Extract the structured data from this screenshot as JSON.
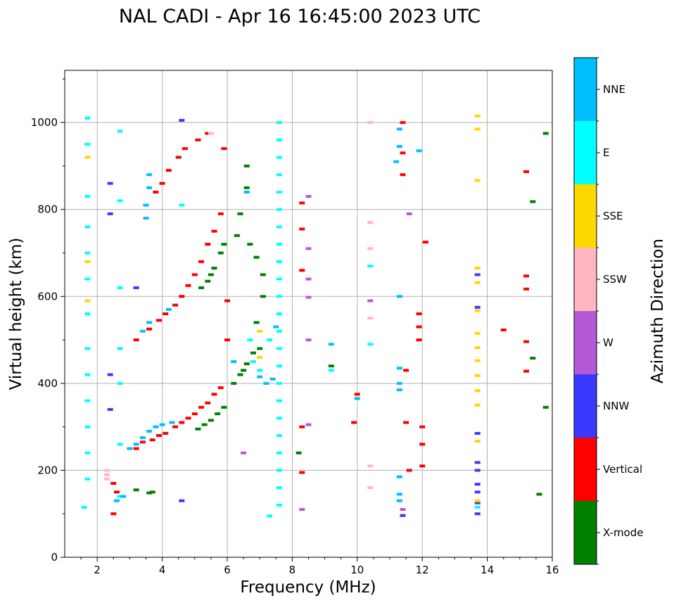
{
  "chart_data": {
    "type": "scatter",
    "title": "NAL CADI - Apr 16 16:45:00 2023 UTC",
    "xlabel": "Frequency (MHz)",
    "ylabel": "Virtual height (km)",
    "xlim": [
      1,
      16
    ],
    "ylim": [
      0,
      1120
    ],
    "grid": true,
    "x_ticks": [
      2,
      4,
      6,
      8,
      10,
      12,
      14,
      16
    ],
    "y_ticks": [
      0,
      200,
      400,
      600,
      800,
      1000
    ],
    "x_minor_ticks": [
      1.5,
      2.5,
      3,
      3.5,
      4.5,
      5,
      5.5,
      6.5,
      7,
      7.5,
      8.5,
      9,
      9.5,
      10.5,
      11,
      11.5,
      12.5,
      13,
      13.5,
      14.5,
      15,
      15.5
    ],
    "y_minor_ticks": [
      100,
      300,
      500,
      700,
      900,
      1100
    ],
    "colorbar": {
      "label": "Azimuth Direction",
      "categories": [
        {
          "name": "X-mode",
          "color": "#008000"
        },
        {
          "name": "Vertical",
          "color": "#ff0000"
        },
        {
          "name": "NNW",
          "color": "#3a3aff"
        },
        {
          "name": "W",
          "color": "#b45ad7"
        },
        {
          "name": "SSW",
          "color": "#ffb6c1"
        },
        {
          "name": "SSE",
          "color": "#ffd700"
        },
        {
          "name": "E",
          "color": "#00ffff"
        },
        {
          "name": "NNE",
          "color": "#00bfff"
        }
      ]
    },
    "series": [
      {
        "name": "X-mode",
        "points": [
          [
            3.2,
            155
          ],
          [
            3.6,
            148
          ],
          [
            3.7,
            150
          ],
          [
            5.1,
            295
          ],
          [
            5.3,
            305
          ],
          [
            5.5,
            315
          ],
          [
            5.7,
            330
          ],
          [
            5.9,
            345
          ],
          [
            5.2,
            620
          ],
          [
            5.4,
            635
          ],
          [
            5.5,
            650
          ],
          [
            5.6,
            665
          ],
          [
            5.8,
            700
          ],
          [
            5.9,
            720
          ],
          [
            6.2,
            400
          ],
          [
            6.4,
            420
          ],
          [
            6.5,
            430
          ],
          [
            6.6,
            445
          ],
          [
            6.8,
            470
          ],
          [
            7.0,
            480
          ],
          [
            6.6,
            900
          ],
          [
            6.6,
            850
          ],
          [
            6.4,
            790
          ],
          [
            6.3,
            740
          ],
          [
            6.7,
            720
          ],
          [
            6.9,
            690
          ],
          [
            7.1,
            650
          ],
          [
            7.1,
            600
          ],
          [
            6.9,
            540
          ],
          [
            8.2,
            240
          ],
          [
            9.2,
            440
          ],
          [
            15.6,
            145
          ],
          [
            15.8,
            345
          ],
          [
            15.4,
            458
          ],
          [
            15.4,
            818
          ],
          [
            15.8,
            975
          ]
        ]
      },
      {
        "name": "Vertical",
        "points": [
          [
            2.5,
            170
          ],
          [
            2.6,
            150
          ],
          [
            2.5,
            100
          ],
          [
            3.2,
            250
          ],
          [
            3.4,
            265
          ],
          [
            3.7,
            270
          ],
          [
            3.9,
            280
          ],
          [
            4.1,
            285
          ],
          [
            4.4,
            300
          ],
          [
            4.6,
            310
          ],
          [
            4.8,
            320
          ],
          [
            5.0,
            330
          ],
          [
            5.2,
            345
          ],
          [
            5.4,
            355
          ],
          [
            5.6,
            375
          ],
          [
            5.8,
            390
          ],
          [
            3.2,
            500
          ],
          [
            3.6,
            525
          ],
          [
            3.9,
            545
          ],
          [
            4.1,
            560
          ],
          [
            4.4,
            580
          ],
          [
            4.6,
            600
          ],
          [
            4.8,
            625
          ],
          [
            5.0,
            650
          ],
          [
            5.2,
            680
          ],
          [
            5.4,
            720
          ],
          [
            5.6,
            750
          ],
          [
            5.8,
            790
          ],
          [
            3.8,
            840
          ],
          [
            4.0,
            860
          ],
          [
            4.2,
            890
          ],
          [
            4.5,
            920
          ],
          [
            4.7,
            940
          ],
          [
            5.1,
            960
          ],
          [
            5.4,
            975
          ],
          [
            5.9,
            940
          ],
          [
            6.0,
            590
          ],
          [
            6.0,
            500
          ],
          [
            8.3,
            815
          ],
          [
            8.3,
            755
          ],
          [
            8.3,
            660
          ],
          [
            8.3,
            300
          ],
          [
            8.3,
            195
          ],
          [
            10.0,
            375
          ],
          [
            9.9,
            310
          ],
          [
            11.4,
            880
          ],
          [
            11.4,
            930
          ],
          [
            11.4,
            1000
          ],
          [
            11.5,
            430
          ],
          [
            11.5,
            310
          ],
          [
            11.6,
            200
          ],
          [
            11.9,
            560
          ],
          [
            11.9,
            530
          ],
          [
            11.9,
            500
          ],
          [
            12.0,
            300
          ],
          [
            12.0,
            260
          ],
          [
            12.0,
            210
          ],
          [
            12.1,
            725
          ],
          [
            14.5,
            523
          ],
          [
            15.2,
            887
          ],
          [
            15.2,
            647
          ],
          [
            15.2,
            617
          ],
          [
            15.2,
            496
          ],
          [
            15.2,
            428
          ]
        ]
      },
      {
        "name": "NNW",
        "points": [
          [
            2.4,
            860
          ],
          [
            2.4,
            790
          ],
          [
            2.4,
            420
          ],
          [
            2.4,
            340
          ],
          [
            3.2,
            620
          ],
          [
            4.6,
            130
          ],
          [
            4.6,
            1005
          ],
          [
            13.7,
            100
          ],
          [
            13.7,
            125
          ],
          [
            13.7,
            150
          ],
          [
            13.7,
            168
          ],
          [
            13.7,
            200
          ],
          [
            13.7,
            218
          ],
          [
            13.7,
            285
          ],
          [
            13.7,
            650
          ],
          [
            13.7,
            575
          ],
          [
            11.4,
            96
          ]
        ]
      },
      {
        "name": "W",
        "points": [
          [
            8.5,
            830
          ],
          [
            8.5,
            710
          ],
          [
            8.5,
            640
          ],
          [
            8.5,
            598
          ],
          [
            8.5,
            500
          ],
          [
            8.5,
            305
          ],
          [
            8.3,
            110
          ],
          [
            11.4,
            110
          ],
          [
            11.6,
            790
          ],
          [
            10.4,
            590
          ],
          [
            6.5,
            240
          ]
        ]
      },
      {
        "name": "SSW",
        "points": [
          [
            2.3,
            200
          ],
          [
            2.3,
            190
          ],
          [
            2.3,
            180
          ],
          [
            10.4,
            1000
          ],
          [
            10.4,
            770
          ],
          [
            10.4,
            710
          ],
          [
            10.4,
            550
          ],
          [
            10.4,
            210
          ],
          [
            10.4,
            160
          ],
          [
            5.5,
            975
          ]
        ]
      },
      {
        "name": "SSE",
        "points": [
          [
            1.7,
            920
          ],
          [
            1.7,
            680
          ],
          [
            1.7,
            590
          ],
          [
            13.7,
            1015
          ],
          [
            13.7,
            985
          ],
          [
            13.7,
            867
          ],
          [
            13.7,
            665
          ],
          [
            13.7,
            632
          ],
          [
            13.7,
            567
          ],
          [
            13.7,
            515
          ],
          [
            13.7,
            482
          ],
          [
            13.7,
            452
          ],
          [
            13.7,
            418
          ],
          [
            13.7,
            383
          ],
          [
            13.7,
            350
          ],
          [
            13.7,
            267
          ],
          [
            13.7,
            130
          ],
          [
            7.0,
            520
          ],
          [
            7.0,
            460
          ]
        ]
      },
      {
        "name": "E",
        "points": [
          [
            1.7,
            1010
          ],
          [
            1.7,
            950
          ],
          [
            1.7,
            830
          ],
          [
            1.7,
            760
          ],
          [
            1.7,
            700
          ],
          [
            1.7,
            640
          ],
          [
            1.7,
            560
          ],
          [
            1.7,
            480
          ],
          [
            1.7,
            420
          ],
          [
            1.7,
            360
          ],
          [
            1.7,
            300
          ],
          [
            1.7,
            240
          ],
          [
            1.7,
            180
          ],
          [
            1.6,
            115
          ],
          [
            2.7,
            980
          ],
          [
            2.7,
            820
          ],
          [
            2.7,
            620
          ],
          [
            2.7,
            480
          ],
          [
            2.7,
            400
          ],
          [
            2.7,
            260
          ],
          [
            2.7,
            140
          ],
          [
            7.6,
            1000
          ],
          [
            7.6,
            960
          ],
          [
            7.6,
            920
          ],
          [
            7.6,
            880
          ],
          [
            7.6,
            840
          ],
          [
            7.6,
            800
          ],
          [
            7.6,
            760
          ],
          [
            7.6,
            720
          ],
          [
            7.6,
            680
          ],
          [
            7.6,
            640
          ],
          [
            7.6,
            600
          ],
          [
            7.6,
            560
          ],
          [
            7.6,
            520
          ],
          [
            7.6,
            480
          ],
          [
            7.6,
            440
          ],
          [
            7.6,
            400
          ],
          [
            7.6,
            360
          ],
          [
            7.6,
            320
          ],
          [
            7.6,
            280
          ],
          [
            7.6,
            240
          ],
          [
            7.6,
            200
          ],
          [
            7.6,
            160
          ],
          [
            7.6,
            120
          ],
          [
            7.3,
            95
          ],
          [
            7.3,
            500
          ],
          [
            7.0,
            430
          ],
          [
            6.8,
            450
          ],
          [
            6.7,
            500
          ],
          [
            9.2,
            430
          ],
          [
            10.4,
            670
          ],
          [
            10.4,
            490
          ],
          [
            13.7,
            115
          ],
          [
            4.6,
            810
          ]
        ]
      },
      {
        "name": "NNE",
        "points": [
          [
            2.6,
            130
          ],
          [
            2.8,
            140
          ],
          [
            3.0,
            250
          ],
          [
            3.2,
            260
          ],
          [
            3.4,
            275
          ],
          [
            3.6,
            290
          ],
          [
            3.8,
            300
          ],
          [
            4.0,
            305
          ],
          [
            4.3,
            310
          ],
          [
            3.6,
            880
          ],
          [
            3.6,
            850
          ],
          [
            3.5,
            810
          ],
          [
            3.5,
            780
          ],
          [
            4.2,
            570
          ],
          [
            3.6,
            540
          ],
          [
            3.4,
            520
          ],
          [
            6.6,
            840
          ],
          [
            6.2,
            450
          ],
          [
            7.0,
            415
          ],
          [
            7.2,
            400
          ],
          [
            7.4,
            410
          ],
          [
            7.5,
            530
          ],
          [
            11.3,
            985
          ],
          [
            11.3,
            945
          ],
          [
            11.2,
            910
          ],
          [
            11.9,
            935
          ],
          [
            11.3,
            600
          ],
          [
            11.3,
            435
          ],
          [
            11.3,
            400
          ],
          [
            11.3,
            385
          ],
          [
            11.3,
            185
          ],
          [
            11.3,
            145
          ],
          [
            11.3,
            130
          ],
          [
            10.0,
            365
          ],
          [
            9.2,
            490
          ]
        ]
      }
    ]
  }
}
